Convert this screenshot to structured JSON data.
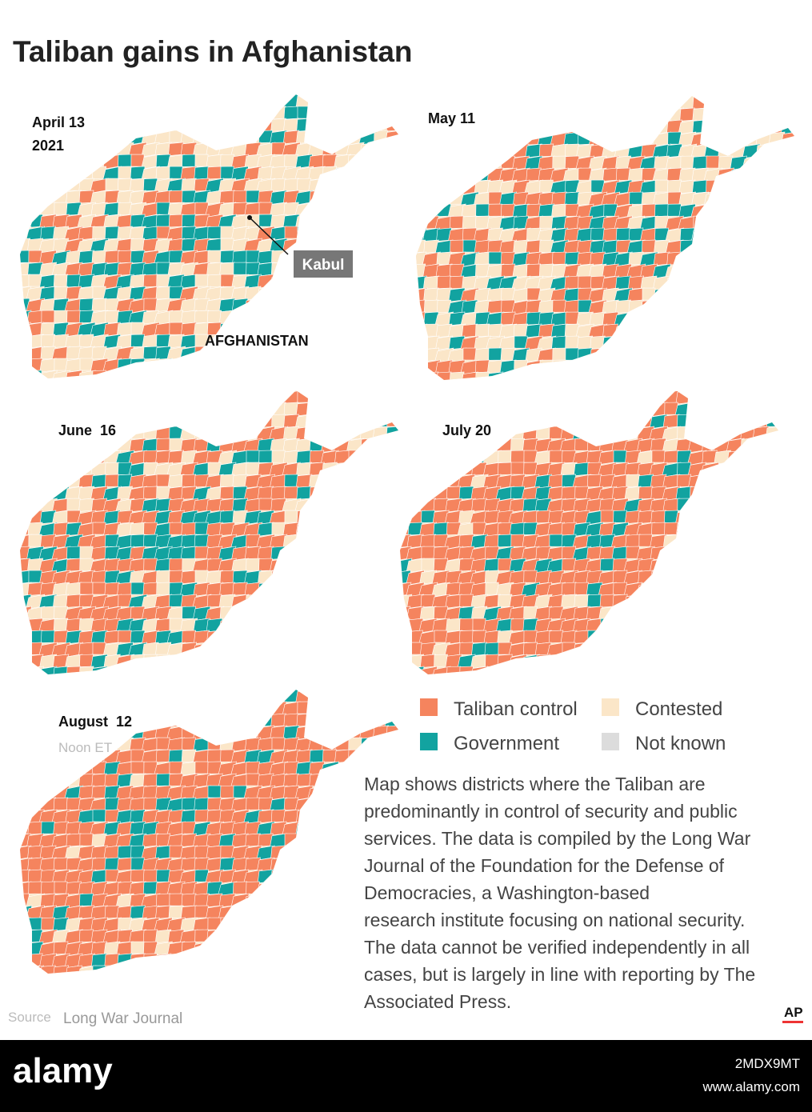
{
  "header": {
    "title": "Taliban gains in Afghanistan"
  },
  "panels": [
    {
      "date": "April 13",
      "year": "2021",
      "city": "Kabul",
      "country": "AFGHANISTAN"
    },
    {
      "date": "May 11"
    },
    {
      "date": "June  16"
    },
    {
      "date": "July 20"
    },
    {
      "date": "August  12",
      "time": "Noon ET"
    }
  ],
  "legend": [
    {
      "label": "Taliban control",
      "color": "#f5845e"
    },
    {
      "label": "Contested",
      "color": "#fbe6c8"
    },
    {
      "label": "Government",
      "color": "#12a3a0"
    },
    {
      "label": "Not known",
      "color": "#dcdcdc"
    }
  ],
  "note": [
    "Map shows districts where the Taliban are",
    "predominantly in control of security and public",
    "services. The data is compiled by the Long War",
    "Journal of the Foundation for the Defense of",
    "Democracies, a Washington-based",
    "research institute focusing on national security.",
    "The data cannot be verified independently in all",
    "cases,  but is largely in line with reporting by The",
    "Associated Press."
  ],
  "source": {
    "label": "Source",
    "text": "Long War Journal"
  },
  "credit": "AP",
  "footer": {
    "brand": "alamy",
    "id": "2MDX9MT",
    "url": "www.alamy.com"
  }
}
